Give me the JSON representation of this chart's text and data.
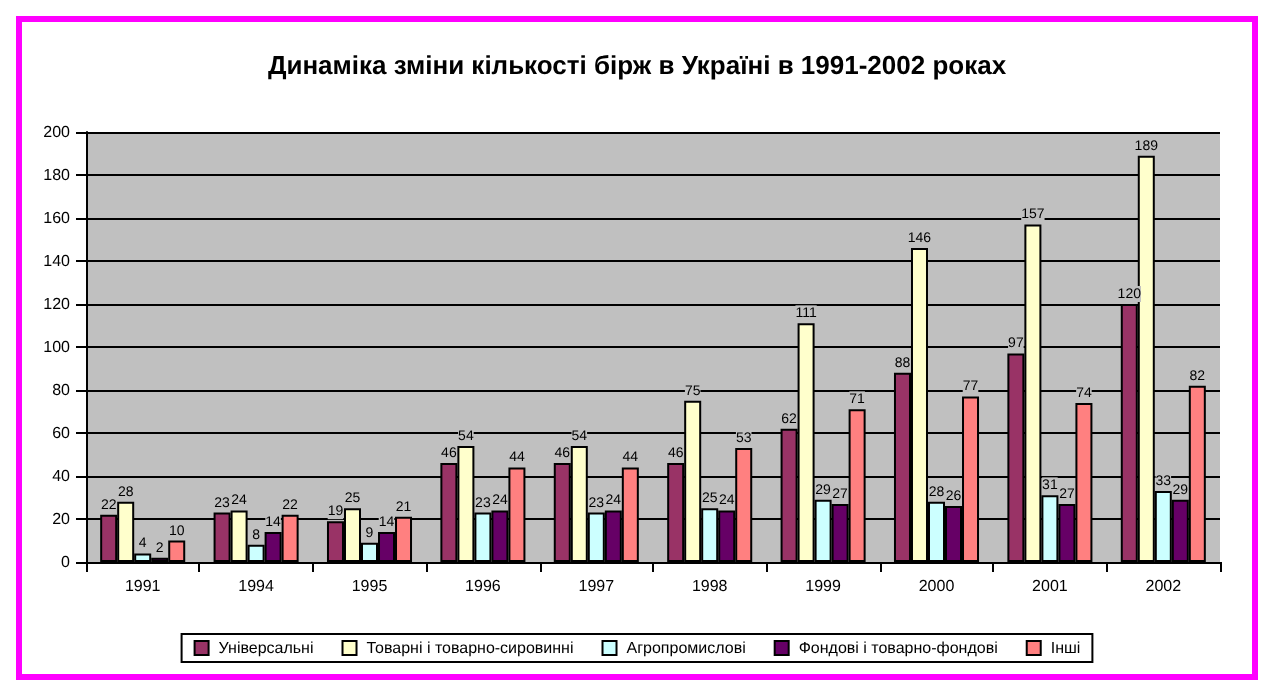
{
  "chart_data": {
    "type": "bar",
    "title": "Динаміка зміни кількості бірж в Україні в 1991-2002 роках",
    "categories": [
      "1991",
      "1994",
      "1995",
      "1996",
      "1997",
      "1998",
      "1999",
      "2000",
      "2001",
      "2002"
    ],
    "series": [
      {
        "name": "Універсальні",
        "color": "#993366",
        "values": [
          22,
          23,
          19,
          46,
          46,
          46,
          62,
          88,
          97,
          120
        ]
      },
      {
        "name": "Товарні і товарно-сировинні",
        "color": "#ffffcc",
        "values": [
          28,
          24,
          25,
          54,
          54,
          75,
          111,
          146,
          157,
          189
        ]
      },
      {
        "name": "Агропромислові",
        "color": "#ccffff",
        "values": [
          4,
          8,
          9,
          23,
          23,
          25,
          29,
          28,
          31,
          33
        ]
      },
      {
        "name": "Фондові і товарно-фондові",
        "color": "#660066",
        "values": [
          2,
          14,
          14,
          24,
          24,
          24,
          27,
          26,
          27,
          29
        ]
      },
      {
        "name": "Інші",
        "color": "#ff8080",
        "values": [
          10,
          22,
          21,
          44,
          44,
          53,
          71,
          77,
          74,
          82
        ]
      }
    ],
    "ylim": [
      0,
      200
    ],
    "yticks": [
      0,
      20,
      40,
      60,
      80,
      100,
      120,
      140,
      160,
      180,
      200
    ],
    "grid": "y",
    "legend": "bottom",
    "data_labels": true
  }
}
